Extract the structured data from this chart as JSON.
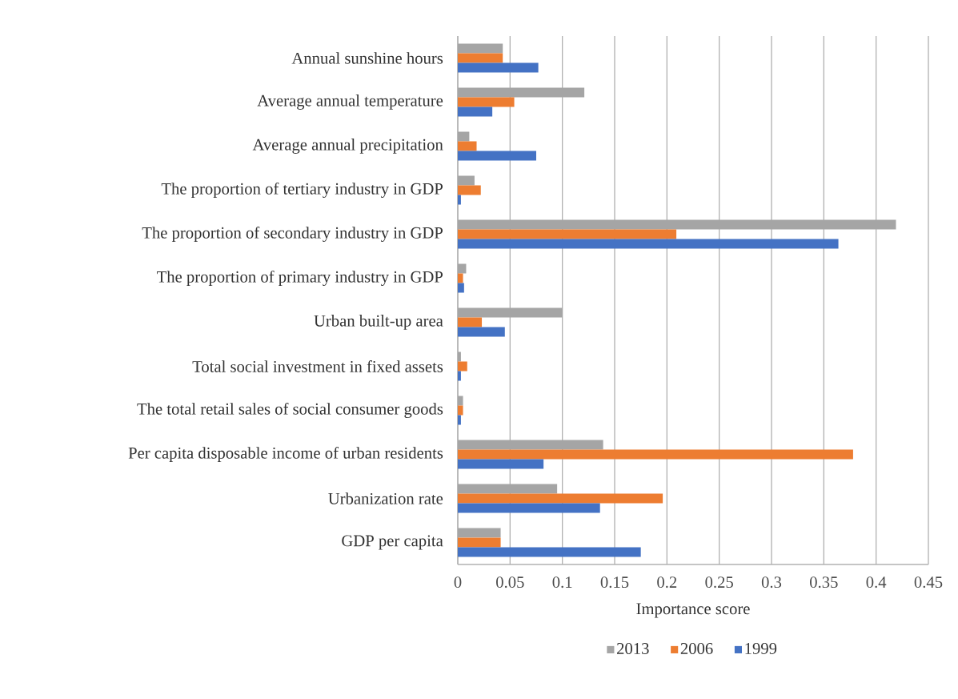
{
  "chart_data": {
    "type": "bar",
    "orientation": "horizontal",
    "categories": [
      "Annual sunshine hours",
      "Average annual temperature",
      "Average annual precipitation",
      "The proportion of tertiary industry in GDP",
      "The proportion of secondary industry in GDP",
      "The proportion of primary industry in GDP",
      "Urban built-up area",
      "Total social investment in fixed assets",
      "The total retail sales of social consumer goods",
      "Per capita disposable income of urban residents",
      "Urbanization rate",
      "GDP per capita"
    ],
    "series": [
      {
        "name": "2013",
        "color": "#a5a5a5",
        "values": [
          0.043,
          0.121,
          0.011,
          0.016,
          0.419,
          0.008,
          0.1,
          0.003,
          0.005,
          0.139,
          0.095,
          0.041
        ]
      },
      {
        "name": "2006",
        "color": "#ed7d31",
        "values": [
          0.043,
          0.054,
          0.018,
          0.022,
          0.209,
          0.005,
          0.023,
          0.009,
          0.005,
          0.378,
          0.196,
          0.041
        ]
      },
      {
        "name": "1999",
        "color": "#4472c4",
        "values": [
          0.077,
          0.033,
          0.075,
          0.003,
          0.364,
          0.006,
          0.045,
          0.003,
          0.003,
          0.082,
          0.136,
          0.175
        ]
      }
    ],
    "xlabel": "Importance score",
    "xlim": [
      0,
      0.45
    ],
    "xticks": [
      0,
      0.05,
      0.1,
      0.15,
      0.2,
      0.25,
      0.3,
      0.35,
      0.4,
      0.45
    ],
    "grid": "x",
    "legend": "bottom"
  }
}
